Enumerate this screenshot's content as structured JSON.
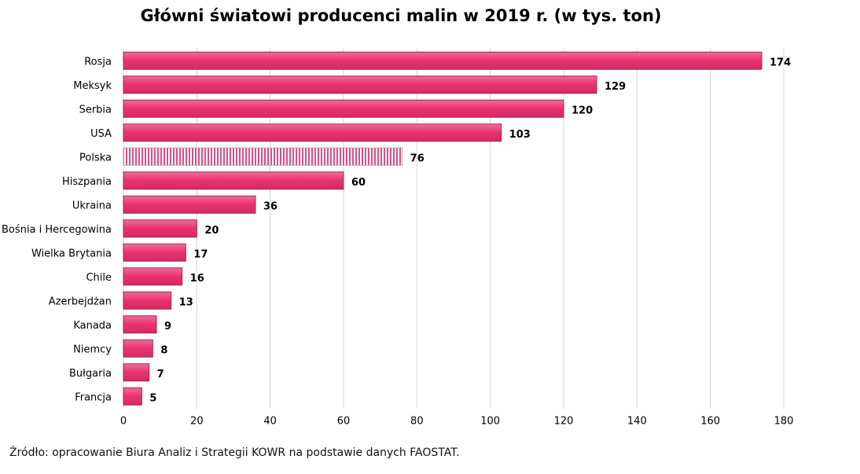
{
  "chart_data": {
    "type": "bar",
    "orientation": "horizontal",
    "title": "Główni światowi producenci malin w 2019 r. (w tys. ton)",
    "categories": [
      "Rosja",
      "Meksyk",
      "Serbia",
      "USA",
      "Polska",
      "Hiszpania",
      "Ukraina",
      "Bośnia i Hercegowina",
      "Wielka Brytania",
      "Chile",
      "Azerbejdżan",
      "Kanada",
      "Niemcy",
      "Bułgaria",
      "Francja"
    ],
    "values": [
      174,
      129,
      120,
      103,
      76,
      60,
      36,
      20,
      17,
      16,
      13,
      9,
      8,
      7,
      5
    ],
    "highlighted_category": "Polska",
    "xlim": [
      0,
      180
    ],
    "xticks": [
      0,
      20,
      40,
      60,
      80,
      100,
      120,
      140,
      160,
      180
    ],
    "grid": true,
    "colors": {
      "bar": "#e8336f",
      "bar_light": "#f3689a",
      "highlight": "#e14b85"
    }
  },
  "source": "Źródło: opracowanie Biura Analiz i Strategii KOWR na podstawie danych FAOSTAT."
}
